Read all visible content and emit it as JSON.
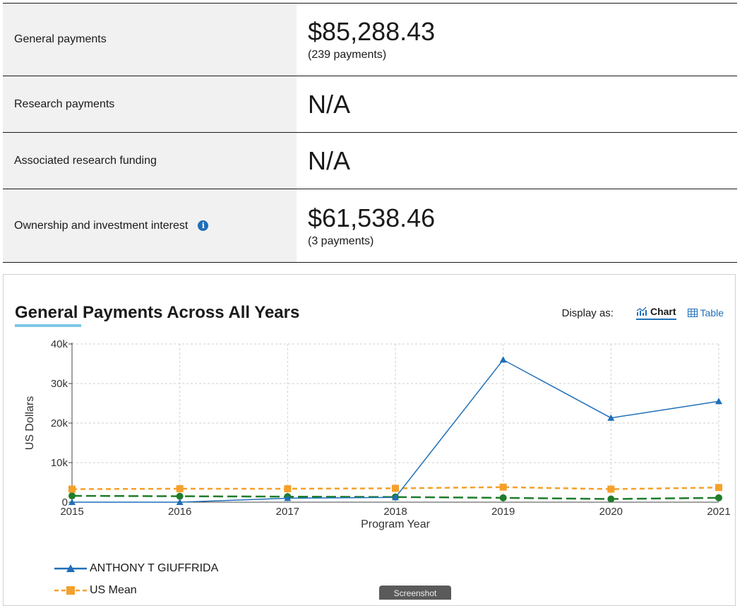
{
  "summary": {
    "general": {
      "label": "General payments",
      "amount": "$85,288.43",
      "count": "(239 payments)"
    },
    "research": {
      "label": "Research payments",
      "amount": "N/A"
    },
    "associated": {
      "label": "Associated research funding",
      "amount": "N/A"
    },
    "ownership": {
      "label": "Ownership and investment interest",
      "amount": "$61,538.46",
      "count": "(3 payments)",
      "info_icon": "info-icon"
    }
  },
  "chart_section": {
    "title": "General Payments Across All Years",
    "display_as": "Display as:",
    "chart_toggle": "Chart",
    "table_toggle": "Table"
  },
  "screenshot_button": "Screenshot",
  "chart_data": {
    "type": "line",
    "x": [
      2015,
      2016,
      2017,
      2018,
      2019,
      2020,
      2021
    ],
    "xlabel": "Program Year",
    "ylabel": "US Dollars",
    "ylim": [
      0,
      40000
    ],
    "yticks": [
      "0",
      "10k",
      "20k",
      "30k",
      "40k"
    ],
    "xticks": [
      "2015",
      "2016",
      "2017",
      "2018",
      "2019",
      "2020",
      "2021"
    ],
    "grid": true,
    "legend": "bottom-left",
    "series": [
      {
        "name": "ANTHONY T GIUFFRIDA",
        "values": [
          0,
          0,
          1000,
          1200,
          36000,
          21300,
          25500
        ],
        "color": "#1f6fb8",
        "marker": "triangle",
        "dash": "solid"
      },
      {
        "name": "US Mean",
        "values": [
          3300,
          3400,
          3400,
          3500,
          3800,
          3300,
          3700
        ],
        "color": "#f5a02a",
        "marker": "square",
        "dash": "dashed"
      },
      {
        "name": "",
        "values": [
          1600,
          1500,
          1400,
          1300,
          1100,
          800,
          1100
        ],
        "color": "#1e7d2a",
        "marker": "circle",
        "dash": "longdash"
      }
    ]
  }
}
